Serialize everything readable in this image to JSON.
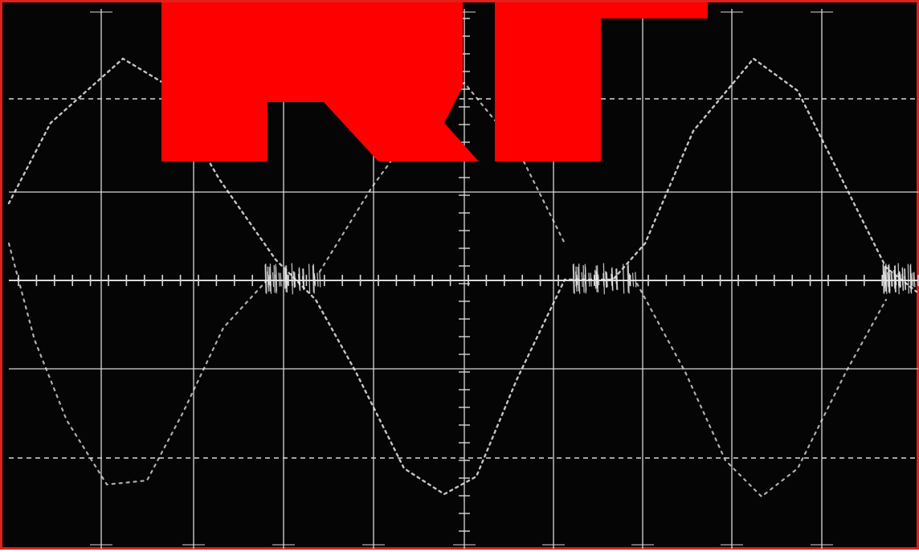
{
  "screen": {
    "background_color": "#050505",
    "frame_color": "#e0201a",
    "grid_color": "#d8d8d8",
    "trace_color": "#e8e8e8",
    "graticule_divisions": {
      "horizontal": 10,
      "vertical": 6
    }
  },
  "overlay": {
    "description": "logo",
    "text": "RF",
    "color": "#ff0000"
  },
  "waveform": {
    "shape": "triangle-like",
    "cycles_visible": 3,
    "baseline_noise": true
  }
}
